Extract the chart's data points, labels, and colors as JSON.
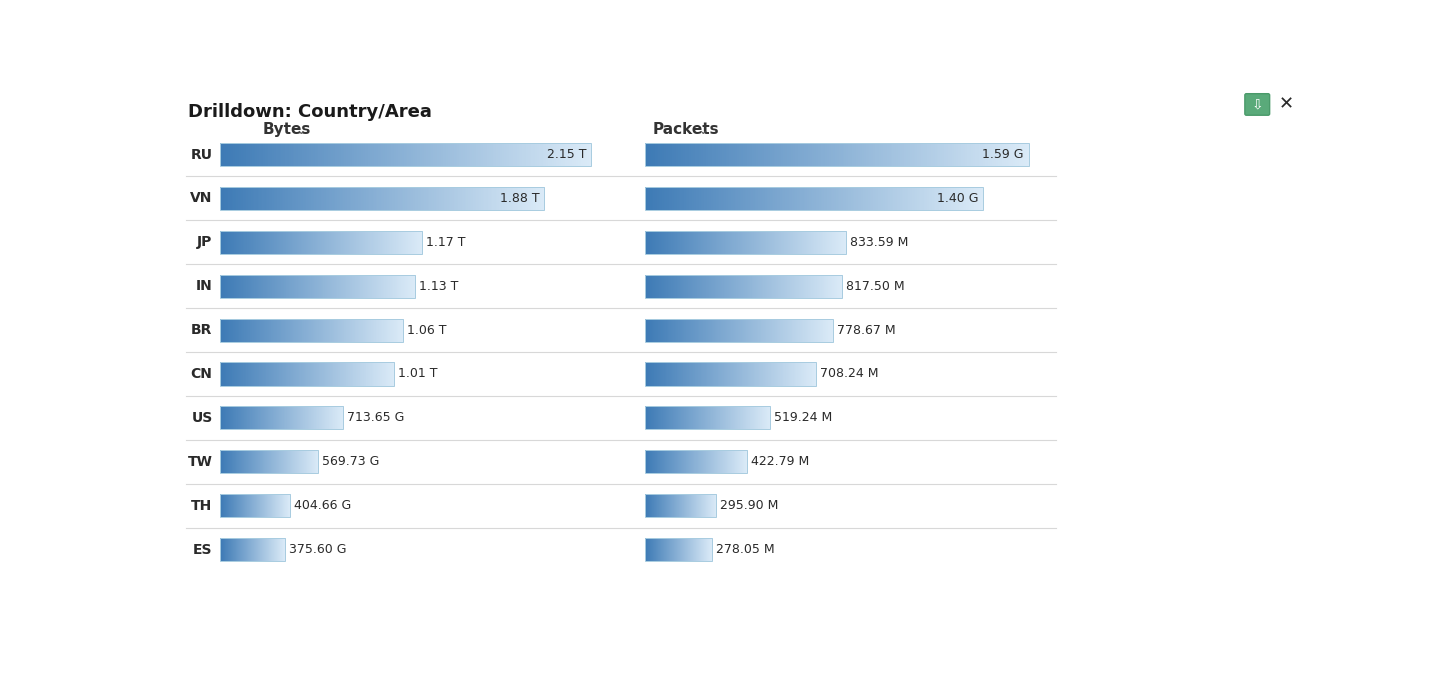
{
  "title": "Drilldown: Country/Area",
  "countries": [
    "RU",
    "VN",
    "JP",
    "IN",
    "BR",
    "CN",
    "US",
    "TW",
    "TH",
    "ES"
  ],
  "bytes_labels": [
    "2.15 T",
    "1.88 T",
    "1.17 T",
    "1.13 T",
    "1.06 T",
    "1.01 T",
    "713.65 G",
    "569.73 G",
    "404.66 G",
    "375.60 G"
  ],
  "bytes_values": [
    2150,
    1880,
    1170,
    1130,
    1060,
    1010,
    713.65,
    569.73,
    404.66,
    375.6
  ],
  "packets_labels": [
    "1.59 G",
    "1.40 G",
    "833.59 M",
    "817.50 M",
    "778.67 M",
    "708.24 M",
    "519.24 M",
    "422.79 M",
    "295.90 M",
    "278.05 M"
  ],
  "packets_values": [
    1590,
    1400,
    833.59,
    817.5,
    778.67,
    708.24,
    519.24,
    422.79,
    295.9,
    278.05
  ],
  "bytes_header": "Bytes",
  "packets_header": "Packets",
  "background_color": "#ffffff",
  "bar_color_dark": "#3d7ab5",
  "bar_color_light": "#daeaf7",
  "text_color": "#2a2a2a",
  "header_color": "#333333",
  "label_color": "#555555",
  "divider_color": "#d8d8d8",
  "title_color": "#1a1a1a",
  "border_color": "#a8cce0"
}
